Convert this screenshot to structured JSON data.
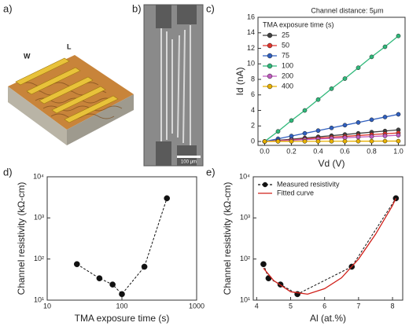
{
  "panels": {
    "a": {
      "label": "a)",
      "texts": [
        "W",
        "L"
      ]
    },
    "b": {
      "label": "b)",
      "scale_bar": "100 μm"
    }
  },
  "chart_data": [
    {
      "type": "line",
      "label": "c)",
      "title": "Channel distance: 5μm",
      "x_label": "Vd (V)",
      "y_label": "Id (nA)",
      "x": [
        0,
        0.1,
        0.2,
        0.3,
        0.4,
        0.5,
        0.6,
        0.7,
        0.8,
        0.9,
        1.0
      ],
      "legend_title": "TMA exposure time (s)",
      "legend": "upper left",
      "series": [
        {
          "name": "25",
          "color": "#404040",
          "marker": "circle",
          "values": [
            0,
            0.15,
            0.3,
            0.45,
            0.6,
            0.75,
            0.9,
            1.05,
            1.2,
            1.35,
            1.5
          ]
        },
        {
          "name": "50",
          "color": "#e0342c",
          "marker": "circle",
          "values": [
            0,
            0.11,
            0.22,
            0.33,
            0.44,
            0.55,
            0.66,
            0.77,
            0.88,
            0.99,
            1.1
          ]
        },
        {
          "name": "75",
          "color": "#2f5fbf",
          "marker": "circle",
          "values": [
            0,
            0.35,
            0.7,
            1.05,
            1.4,
            1.75,
            2.1,
            2.45,
            2.8,
            3.15,
            3.5
          ]
        },
        {
          "name": "100",
          "color": "#2fb87a",
          "marker": "circle",
          "values": [
            0,
            1.3,
            2.7,
            4.0,
            5.4,
            6.8,
            8.1,
            9.5,
            10.9,
            12.2,
            13.6
          ]
        },
        {
          "name": "200",
          "color": "#c05cc0",
          "marker": "circle",
          "values": [
            0,
            0.08,
            0.16,
            0.24,
            0.32,
            0.4,
            0.48,
            0.56,
            0.64,
            0.72,
            0.8
          ]
        },
        {
          "name": "400",
          "color": "#e8b000",
          "marker": "circle",
          "values": [
            0,
            0.01,
            0.01,
            0.02,
            0.02,
            0.03,
            0.03,
            0.04,
            0.04,
            0.05,
            0.05
          ]
        }
      ],
      "xlim": [
        -0.05,
        1.05
      ],
      "ylim": [
        -0.5,
        16
      ],
      "xticks": [
        {
          "value": 0,
          "label": "0.0"
        },
        {
          "value": 0.2,
          "label": "0.2"
        },
        {
          "value": 0.4,
          "label": "0.4"
        },
        {
          "value": 0.6,
          "label": "0.6"
        },
        {
          "value": 0.8,
          "label": "0.8"
        },
        {
          "value": 1.0,
          "label": "1.0"
        }
      ],
      "yticks": [
        0,
        2,
        4,
        6,
        8,
        10,
        12,
        14,
        16
      ]
    },
    {
      "type": "line",
      "label": "d)",
      "x_label": "TMA exposure time (s)",
      "y_label": "Channel resistivity (kΩ-cm)",
      "xscale": "log",
      "yscale": "log",
      "x": [
        25,
        50,
        75,
        100,
        200,
        400
      ],
      "series": [
        {
          "color": "#111111",
          "marker": "circle",
          "line_style": "dashed",
          "values": [
            75,
            34,
            24,
            14,
            65,
            3000
          ]
        }
      ],
      "xlim": [
        10,
        1000
      ],
      "ylim": [
        10,
        10000
      ],
      "xticks": [
        10,
        100,
        1000
      ],
      "yticks": [
        {
          "value": 10,
          "label": "10¹"
        },
        {
          "value": 100,
          "label": "10²"
        },
        {
          "value": 1000,
          "label": "10³"
        },
        {
          "value": 10000,
          "label": "10⁴"
        }
      ]
    },
    {
      "type": "line",
      "label": "e)",
      "x_label": "Al (at.%)",
      "y_label": "Channel resistivity (kΩ-cm)",
      "yscale": "log",
      "legend": "upper left",
      "series": [
        {
          "name": "Measured resistivity",
          "color": "#111111",
          "marker": "circle",
          "line_style": "dashed",
          "x": [
            4.2,
            4.35,
            4.7,
            5.2,
            6.8,
            8.1
          ],
          "values": [
            75,
            34,
            24,
            14,
            65,
            3000
          ]
        },
        {
          "name": "Fitted curve",
          "color": "#d0201a",
          "marker": "none",
          "line_style": "solid",
          "x": [
            4.2,
            4.5,
            5.0,
            5.5,
            6.0,
            6.5,
            7.0,
            7.5,
            8.0,
            8.1
          ],
          "values": [
            60,
            30,
            16,
            14,
            19,
            35,
            100,
            400,
            2000,
            3000
          ]
        }
      ],
      "xlim": [
        3.9,
        8.3
      ],
      "ylim": [
        10,
        10000
      ],
      "xticks": [
        4,
        5,
        6,
        7,
        8
      ],
      "yticks": [
        {
          "value": 10,
          "label": "10¹"
        },
        {
          "value": 100,
          "label": "10²"
        },
        {
          "value": 1000,
          "label": "10³"
        },
        {
          "value": 10000,
          "label": "10⁴"
        }
      ]
    }
  ]
}
